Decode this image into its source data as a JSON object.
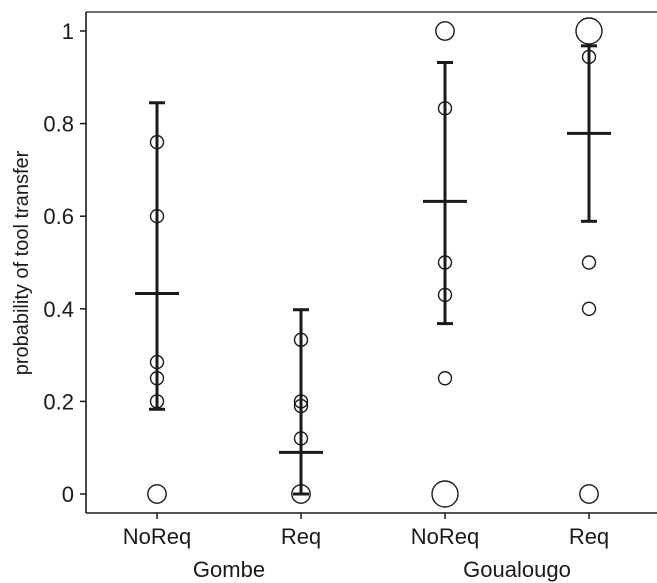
{
  "chart_data": {
    "type": "scatter",
    "title": "",
    "ylabel": "probability of tool transfer",
    "ylim": [
      0,
      1
    ],
    "yticks": [
      0,
      0.2,
      0.4,
      0.6,
      0.8,
      1
    ],
    "ytick_labels": [
      "0",
      "0.2",
      "0.4",
      "0.6",
      "0.8",
      "1"
    ],
    "grid": false,
    "categories": [
      {
        "label": "NoReq",
        "group": "Gombe"
      },
      {
        "label": "Req",
        "group": "Gombe"
      },
      {
        "label": "NoReq",
        "group": "Goualougo"
      },
      {
        "label": "Req",
        "group": "Goualougo"
      }
    ],
    "groups": [
      "Gombe",
      "Goualougo"
    ],
    "points": [
      {
        "cat": 0,
        "y": 0.76,
        "n": 1
      },
      {
        "cat": 0,
        "y": 0.6,
        "n": 1
      },
      {
        "cat": 0,
        "y": 0.285,
        "n": 1
      },
      {
        "cat": 0,
        "y": 0.25,
        "n": 1
      },
      {
        "cat": 0,
        "y": 0.2,
        "n": 1
      },
      {
        "cat": 0,
        "y": 0.0,
        "n": 2
      },
      {
        "cat": 1,
        "y": 0.333,
        "n": 1
      },
      {
        "cat": 1,
        "y": 0.2,
        "n": 1
      },
      {
        "cat": 1,
        "y": 0.19,
        "n": 1
      },
      {
        "cat": 1,
        "y": 0.12,
        "n": 1
      },
      {
        "cat": 1,
        "y": 0.0,
        "n": 2
      },
      {
        "cat": 2,
        "y": 1.0,
        "n": 2
      },
      {
        "cat": 2,
        "y": 0.833,
        "n": 1
      },
      {
        "cat": 2,
        "y": 0.5,
        "n": 1
      },
      {
        "cat": 2,
        "y": 0.43,
        "n": 1
      },
      {
        "cat": 2,
        "y": 0.25,
        "n": 1
      },
      {
        "cat": 2,
        "y": 0.0,
        "n": 4
      },
      {
        "cat": 3,
        "y": 1.0,
        "n": 4
      },
      {
        "cat": 3,
        "y": 0.944,
        "n": 1
      },
      {
        "cat": 3,
        "y": 0.5,
        "n": 1
      },
      {
        "cat": 3,
        "y": 0.4,
        "n": 1
      },
      {
        "cat": 3,
        "y": 0.0,
        "n": 2
      }
    ],
    "estimates": [
      {
        "cat": 0,
        "mean": 0.433,
        "lower": 0.183,
        "upper": 0.845
      },
      {
        "cat": 1,
        "mean": 0.09,
        "lower": 0.0,
        "upper": 0.398
      },
      {
        "cat": 2,
        "mean": 0.632,
        "lower": 0.368,
        "upper": 0.932
      },
      {
        "cat": 3,
        "mean": 0.779,
        "lower": 0.589,
        "upper": 0.968
      }
    ]
  }
}
